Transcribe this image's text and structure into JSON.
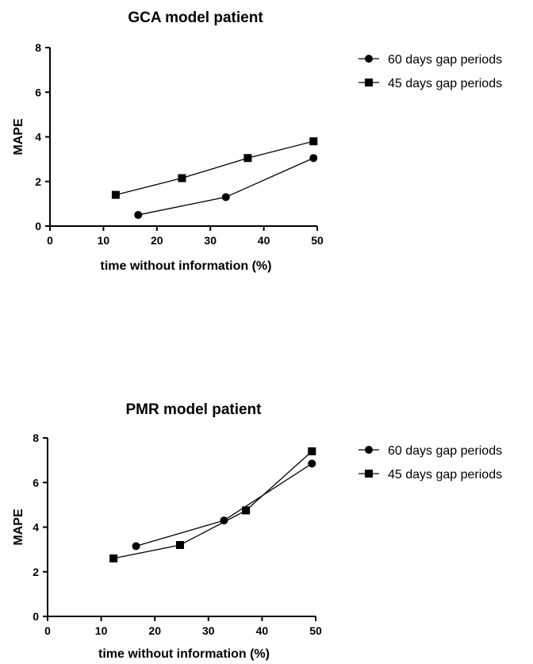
{
  "chart_data": [
    {
      "type": "line",
      "title": "GCA model patient",
      "xlabel": "time without information (%)",
      "ylabel": "MAPE",
      "xlim": [
        0,
        50
      ],
      "ylim": [
        0,
        8
      ],
      "xticks": [
        0,
        10,
        20,
        30,
        40,
        50
      ],
      "yticks": [
        0,
        2,
        4,
        6,
        8
      ],
      "grid": false,
      "legend_position": "top-right",
      "series": [
        {
          "name": "60 days gap periods",
          "marker": "circle",
          "x": [
            16.5,
            32.9,
            49.3
          ],
          "y": [
            0.5,
            1.3,
            3.05
          ]
        },
        {
          "name": "45 days gap periods",
          "marker": "square",
          "x": [
            12.3,
            24.7,
            37.0,
            49.3
          ],
          "y": [
            1.4,
            2.15,
            3.05,
            3.8
          ]
        }
      ]
    },
    {
      "type": "line",
      "title": "PMR model patient",
      "xlabel": "time without information (%)",
      "ylabel": "MAPE",
      "xlim": [
        0,
        50
      ],
      "ylim": [
        0,
        8
      ],
      "xticks": [
        0,
        10,
        20,
        30,
        40,
        50
      ],
      "yticks": [
        0,
        2,
        4,
        6,
        8
      ],
      "grid": false,
      "legend_position": "top-right",
      "series": [
        {
          "name": "60 days gap periods",
          "marker": "circle",
          "x": [
            16.5,
            32.9,
            49.3
          ],
          "y": [
            3.15,
            4.3,
            6.85
          ]
        },
        {
          "name": "45 days gap periods",
          "marker": "square",
          "x": [
            12.3,
            24.7,
            37.0,
            49.3
          ],
          "y": [
            2.6,
            3.2,
            4.75,
            7.4
          ]
        }
      ]
    }
  ]
}
